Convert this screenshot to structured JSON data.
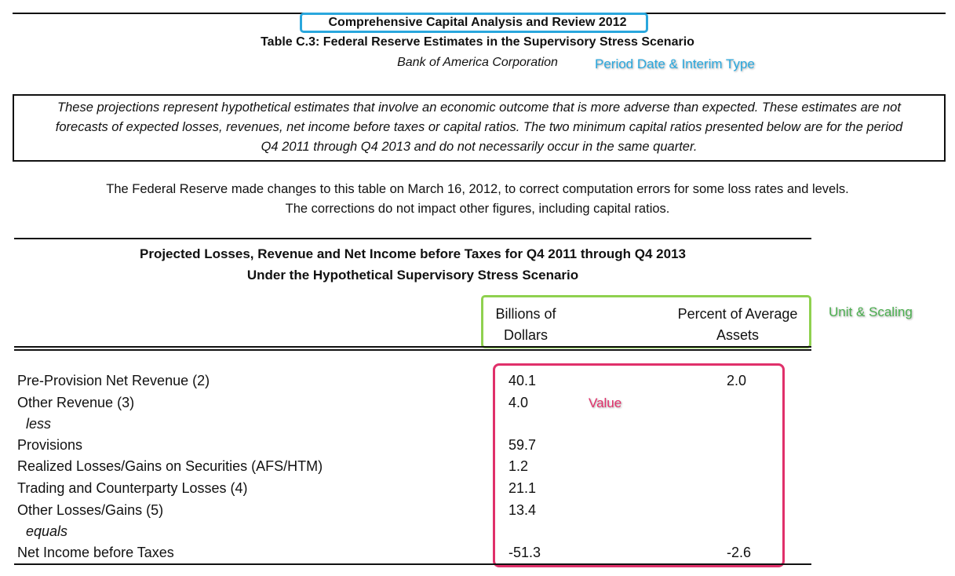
{
  "header": {
    "title": "Comprehensive Capital Analysis and Review 2012",
    "table_title": "Table C.3: Federal Reserve Estimates in the Supervisory Stress Scenario",
    "company": "Bank of America Corporation"
  },
  "annotations": {
    "period_label": "Period Date & Interim Type",
    "unit_label": "Unit & Scaling",
    "value_label": "Value",
    "colors": {
      "period": "#2aa7dd",
      "unit": "#8fd14f",
      "value": "#e0306a"
    }
  },
  "disclaimer": {
    "line1": "These projections represent hypothetical estimates that involve an economic outcome that is more adverse than expected.  These estimates are not",
    "line2": "forecasts of expected losses, revenues, net income before taxes or capital ratios.  The two minimum capital ratios presented below are for the period",
    "line3": "Q4 2011 through Q4 2013 and do not necessarily occur in the same quarter."
  },
  "notice": {
    "line1": "The Federal Reserve made changes to this table on March 16, 2012, to correct computation errors for some loss rates and levels.",
    "line2": "The corrections do not impact other figures, including capital ratios."
  },
  "section": {
    "title_line1": "Projected Losses, Revenue and Net Income before Taxes for Q4 2011 through Q4 2013",
    "title_line2": "Under the Hypothetical Supervisory Stress Scenario"
  },
  "columns": {
    "billions_line1": "Billions of",
    "billions_line2": "Dollars",
    "percent_line1": "Percent of Average",
    "percent_line2": "Assets"
  },
  "rows": [
    {
      "label": "Pre-Provision Net Revenue (2)",
      "billions": "40.1",
      "percent": "2.0"
    },
    {
      "label": "Other Revenue (3)",
      "billions": "4.0",
      "percent": ""
    },
    {
      "label": "less",
      "billions": "",
      "percent": ""
    },
    {
      "label": "Provisions",
      "billions": "59.7",
      "percent": ""
    },
    {
      "label": "Realized Losses/Gains on Securities (AFS/HTM)",
      "billions": "1.2",
      "percent": ""
    },
    {
      "label": "Trading and Counterparty Losses (4)",
      "billions": "21.1",
      "percent": ""
    },
    {
      "label": "Other Losses/Gains (5)",
      "billions": "13.4",
      "percent": ""
    },
    {
      "label": "equals",
      "billions": "",
      "percent": ""
    },
    {
      "label": "Net Income before Taxes",
      "billions": "-51.3",
      "percent": "-2.6"
    }
  ]
}
